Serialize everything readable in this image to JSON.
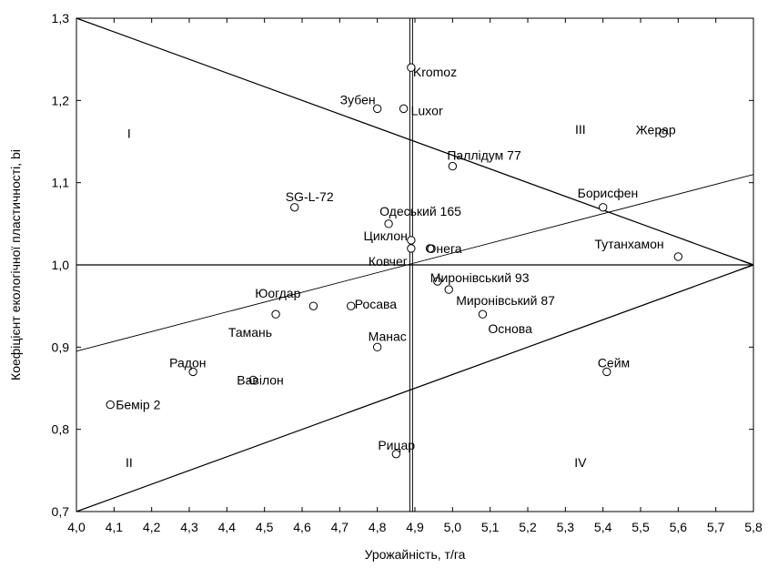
{
  "chart_data": {
    "type": "scatter",
    "title": "",
    "xlabel": "Урожайність, т/га",
    "ylabel": "Коефіцієнт екологічної пластичності, bi",
    "xlim": [
      4.0,
      5.8
    ],
    "ylim": [
      0.7,
      1.3
    ],
    "x_ticks": [
      "4,0",
      "4,1",
      "4,2",
      "4,3",
      "4,4",
      "4,5",
      "4,6",
      "4,7",
      "4,8",
      "4,9",
      "5,0",
      "5,1",
      "5,2",
      "5,3",
      "5,4",
      "5,5",
      "5,6",
      "5,7",
      "5,8"
    ],
    "y_ticks": [
      "0,7",
      "0,8",
      "0,9",
      "1,0",
      "1,1",
      "1,2",
      "1,3"
    ],
    "grid": false,
    "points": [
      {
        "label": "Kromoz",
        "x": 4.89,
        "y": 1.24
      },
      {
        "label": "Зубен",
        "x": 4.8,
        "y": 1.19
      },
      {
        "label": "Luxor",
        "x": 4.87,
        "y": 1.19
      },
      {
        "label": "Жерар",
        "x": 5.56,
        "y": 1.16
      },
      {
        "label": "Паллідум 77",
        "x": 5.0,
        "y": 1.12
      },
      {
        "label": "SG-L-72",
        "x": 4.58,
        "y": 1.07
      },
      {
        "label": "Борисфен",
        "x": 5.4,
        "y": 1.07
      },
      {
        "label": "Одеський 165",
        "x": 4.83,
        "y": 1.05
      },
      {
        "label": "Циклон",
        "x": 4.89,
        "y": 1.03
      },
      {
        "label": "Ковчег",
        "x": 4.89,
        "y": 1.02
      },
      {
        "label": "Онега",
        "x": 4.94,
        "y": 1.02
      },
      {
        "label": "Тутанхамон",
        "x": 5.6,
        "y": 1.01
      },
      {
        "label": "Миронівський 93",
        "x": 4.96,
        "y": 0.98
      },
      {
        "label": "Миронівський 87",
        "x": 4.99,
        "y": 0.97
      },
      {
        "label": "Юогдар",
        "x": 4.63,
        "y": 0.95
      },
      {
        "label": "Росава",
        "x": 4.73,
        "y": 0.95
      },
      {
        "label": "Тамань",
        "x": 4.53,
        "y": 0.94
      },
      {
        "label": "Основа",
        "x": 5.08,
        "y": 0.94
      },
      {
        "label": "Манас",
        "x": 4.8,
        "y": 0.9
      },
      {
        "label": "Радон",
        "x": 4.31,
        "y": 0.87
      },
      {
        "label": "Сейм",
        "x": 5.41,
        "y": 0.87
      },
      {
        "label": "Вавілон",
        "x": 4.47,
        "y": 0.86
      },
      {
        "label": "Бемір 2",
        "x": 4.09,
        "y": 0.83
      },
      {
        "label": "Рицар",
        "x": 4.85,
        "y": 0.77
      }
    ],
    "reference_lines": {
      "horizontal_y": 1.0,
      "vertical_x": 4.89,
      "diagonal_down": {
        "from": [
          4.0,
          1.3
        ],
        "to": [
          5.8,
          1.0
        ]
      },
      "diagonal_up": {
        "from": [
          4.0,
          0.7
        ],
        "to": [
          5.8,
          1.0
        ]
      },
      "regression": {
        "from": [
          4.0,
          0.895
        ],
        "to": [
          5.8,
          1.11
        ]
      }
    },
    "quadrant_labels": [
      {
        "text": "I",
        "x": 4.14,
        "y": 1.16
      },
      {
        "text": "II",
        "x": 4.14,
        "y": 0.76
      },
      {
        "text": "III",
        "x": 5.34,
        "y": 1.165
      },
      {
        "text": "IV",
        "x": 5.34,
        "y": 0.76
      }
    ]
  }
}
